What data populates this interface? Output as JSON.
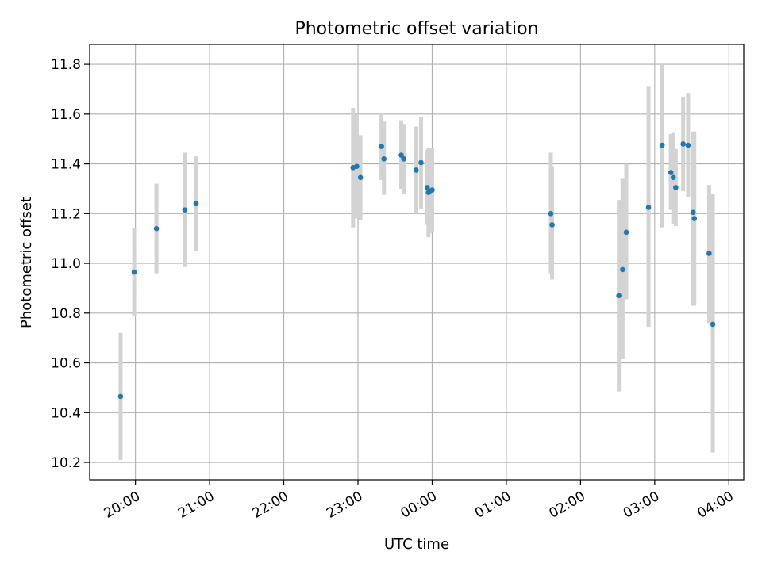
{
  "chart_data": {
    "type": "scatter",
    "title": "Photometric offset variation",
    "xlabel": "UTC time",
    "ylabel": "Photometric offset",
    "x_axis_type": "time",
    "xlim": [
      "19:23",
      "04:12"
    ],
    "ylim": [
      10.13,
      11.88
    ],
    "xticks": [
      "20:00",
      "21:00",
      "22:00",
      "23:00",
      "00:00",
      "01:00",
      "02:00",
      "03:00",
      "04:00"
    ],
    "yticks": [
      "10.2",
      "10.4",
      "10.6",
      "10.8",
      "11.0",
      "11.2",
      "11.4",
      "11.6",
      "11.8"
    ],
    "grid": true,
    "legend": false,
    "point_color": "#1f77b4",
    "errorbar_color": "#d3d3d3",
    "points": [
      {
        "x": "19:48",
        "y": 10.465,
        "lo": 10.21,
        "hi": 10.72
      },
      {
        "x": "19:59",
        "y": 10.965,
        "lo": 10.79,
        "hi": 11.14
      },
      {
        "x": "20:17",
        "y": 11.14,
        "lo": 10.96,
        "hi": 11.32
      },
      {
        "x": "20:40",
        "y": 11.215,
        "lo": 10.985,
        "hi": 11.445
      },
      {
        "x": "20:49",
        "y": 11.24,
        "lo": 11.05,
        "hi": 11.43
      },
      {
        "x": "22:56",
        "y": 11.385,
        "lo": 11.145,
        "hi": 11.625
      },
      {
        "x": "22:59",
        "y": 11.39,
        "lo": 11.18,
        "hi": 11.6
      },
      {
        "x": "23:02",
        "y": 11.345,
        "lo": 11.175,
        "hi": 11.515
      },
      {
        "x": "23:19",
        "y": 11.47,
        "lo": 11.335,
        "hi": 11.605
      },
      {
        "x": "23:21",
        "y": 11.42,
        "lo": 11.275,
        "hi": 11.57
      },
      {
        "x": "23:35",
        "y": 11.435,
        "lo": 11.3,
        "hi": 11.575
      },
      {
        "x": "23:37",
        "y": 11.42,
        "lo": 11.28,
        "hi": 11.56
      },
      {
        "x": "23:47",
        "y": 11.375,
        "lo": 11.2,
        "hi": 11.55
      },
      {
        "x": "23:51",
        "y": 11.405,
        "lo": 11.22,
        "hi": 11.59
      },
      {
        "x": "23:56",
        "y": 11.305,
        "lo": 11.155,
        "hi": 11.455
      },
      {
        "x": "23:57",
        "y": 11.285,
        "lo": 11.105,
        "hi": 11.465
      },
      {
        "x": "23:58",
        "y": 11.29,
        "lo": 11.12,
        "hi": 11.465
      },
      {
        "x": "00:00",
        "y": 11.295,
        "lo": 11.125,
        "hi": 11.465
      },
      {
        "x": "01:36",
        "y": 11.2,
        "lo": 10.96,
        "hi": 11.445
      },
      {
        "x": "01:37",
        "y": 11.155,
        "lo": 10.935,
        "hi": 11.39
      },
      {
        "x": "02:31",
        "y": 10.87,
        "lo": 10.485,
        "hi": 11.255
      },
      {
        "x": "02:34",
        "y": 10.975,
        "lo": 10.615,
        "hi": 11.34
      },
      {
        "x": "02:37",
        "y": 11.125,
        "lo": 10.855,
        "hi": 11.4
      },
      {
        "x": "02:55",
        "y": 11.225,
        "lo": 10.745,
        "hi": 11.71
      },
      {
        "x": "03:06",
        "y": 11.475,
        "lo": 11.145,
        "hi": 11.8
      },
      {
        "x": "03:13",
        "y": 11.365,
        "lo": 11.215,
        "hi": 11.52
      },
      {
        "x": "03:15",
        "y": 11.345,
        "lo": 11.16,
        "hi": 11.525
      },
      {
        "x": "03:17",
        "y": 11.305,
        "lo": 11.15,
        "hi": 11.46
      },
      {
        "x": "03:23",
        "y": 11.48,
        "lo": 11.29,
        "hi": 11.67
      },
      {
        "x": "03:27",
        "y": 11.475,
        "lo": 11.265,
        "hi": 11.685
      },
      {
        "x": "03:31",
        "y": 11.205,
        "lo": 10.83,
        "hi": 11.53
      },
      {
        "x": "03:32",
        "y": 11.18,
        "lo": 10.83,
        "hi": 11.53
      },
      {
        "x": "03:44",
        "y": 11.04,
        "lo": 10.76,
        "hi": 11.315
      },
      {
        "x": "03:47",
        "y": 10.755,
        "lo": 10.24,
        "hi": 11.28
      }
    ]
  }
}
